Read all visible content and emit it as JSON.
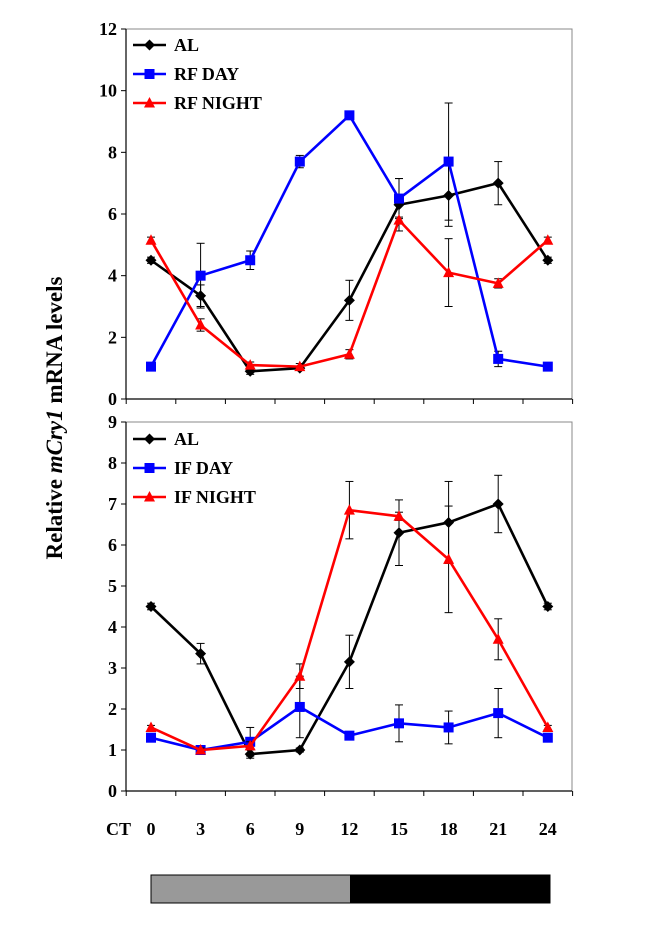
{
  "chart_data": [
    {
      "type": "line",
      "panel": "top",
      "x": [
        0,
        3,
        6,
        9,
        12,
        15,
        18,
        21,
        24
      ],
      "ylim": [
        0,
        12
      ],
      "yticks": [
        0,
        2,
        4,
        6,
        8,
        10,
        12
      ],
      "series": [
        {
          "name": "AL",
          "color": "#000000",
          "marker": "diamond",
          "values": [
            4.5,
            3.35,
            0.9,
            1.0,
            3.2,
            6.3,
            6.6,
            7.0,
            4.5
          ],
          "errors": [
            0.1,
            0.35,
            0.1,
            0.05,
            0.65,
            0.85,
            1.0,
            0.7,
            0.1
          ]
        },
        {
          "name": "RF DAY",
          "color": "#0000ff",
          "marker": "square",
          "values": [
            1.05,
            4.0,
            4.5,
            7.7,
            9.2,
            6.5,
            7.7,
            1.3,
            1.05
          ],
          "errors": [
            0.1,
            1.05,
            0.3,
            0.2,
            0.1,
            0.65,
            1.9,
            0.25,
            0.1
          ]
        },
        {
          "name": "RF NIGHT",
          "color": "#ff0000",
          "marker": "triangle",
          "values": [
            5.15,
            2.4,
            1.1,
            1.05,
            1.45,
            5.8,
            4.1,
            3.75,
            5.15
          ],
          "errors": [
            0.1,
            0.2,
            0.1,
            0.1,
            0.15,
            0.1,
            1.1,
            0.15,
            0.1
          ]
        }
      ]
    },
    {
      "type": "line",
      "panel": "bottom",
      "x": [
        0,
        3,
        6,
        9,
        12,
        15,
        18,
        21,
        24
      ],
      "ylim": [
        0,
        9
      ],
      "yticks": [
        0,
        1,
        2,
        3,
        4,
        5,
        6,
        7,
        8,
        9
      ],
      "series": [
        {
          "name": "AL",
          "color": "#000000",
          "marker": "diamond",
          "values": [
            4.5,
            3.35,
            0.9,
            1.0,
            3.15,
            6.3,
            6.55,
            7.0,
            4.5
          ],
          "errors": [
            0.08,
            0.25,
            0.1,
            0.05,
            0.65,
            0.8,
            1.0,
            0.7,
            0.08
          ]
        },
        {
          "name": "IF DAY",
          "color": "#0000ff",
          "marker": "square",
          "values": [
            1.3,
            1.0,
            1.2,
            2.05,
            1.35,
            1.65,
            1.55,
            1.9,
            1.3
          ],
          "errors": [
            0.05,
            0.05,
            0.35,
            0.75,
            0.1,
            0.45,
            0.4,
            0.6,
            0.05
          ]
        },
        {
          "name": "IF NIGHT",
          "color": "#ff0000",
          "marker": "triangle",
          "values": [
            1.55,
            1.0,
            1.1,
            2.8,
            6.85,
            6.7,
            5.65,
            3.7,
            1.55
          ],
          "errors": [
            0.05,
            0.05,
            0.1,
            0.3,
            0.7,
            0.1,
            1.3,
            0.5,
            0.05
          ]
        }
      ]
    }
  ],
  "ylabel_prefix": "Relative ",
  "ylabel_gene": "mCry1",
  "ylabel_suffix": " mRNA levels",
  "xlabel_prefix": "CT",
  "xticks": [
    "0",
    "3",
    "6",
    "9",
    "12",
    "15",
    "18",
    "21",
    "24"
  ],
  "light_dark_bar": {
    "light_color": "#999999",
    "dark_color": "#000000",
    "light_until_ct": 12
  }
}
